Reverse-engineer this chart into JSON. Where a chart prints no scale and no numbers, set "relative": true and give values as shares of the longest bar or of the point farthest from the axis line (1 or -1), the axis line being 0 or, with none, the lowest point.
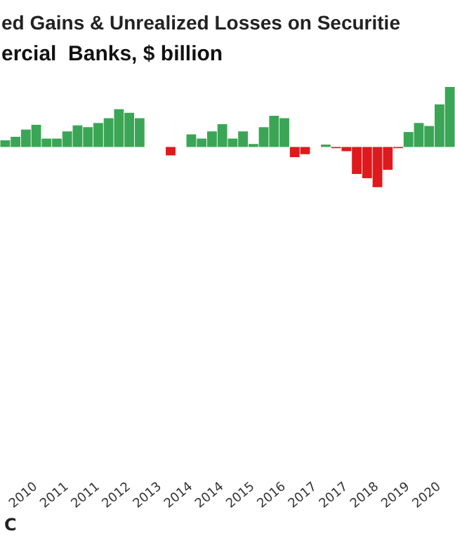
{
  "chart_data": {
    "type": "bar",
    "title": "ed Gains & Unrealized Losses on Securitie",
    "subtitle": "ercial  Banks, $ billion",
    "relative": true,
    "categories": [
      null,
      null,
      null,
      "2010",
      null,
      null,
      "2011",
      null,
      null,
      "2011",
      null,
      null,
      "2012",
      null,
      null,
      "2013",
      null,
      null,
      "2014",
      null,
      null,
      "2014",
      null,
      null,
      "2015",
      null,
      null,
      "2016",
      null,
      null,
      "2017",
      null,
      null,
      "2017",
      null,
      null,
      "2018",
      null,
      null,
      "2019",
      null,
      null,
      "2020",
      null
    ],
    "values": [
      0.11,
      0.17,
      0.29,
      0.37,
      0.14,
      0.14,
      0.26,
      0.36,
      0.33,
      0.4,
      0.48,
      0.63,
      0.57,
      0.48,
      0,
      0,
      -0.14,
      0,
      0.21,
      0.14,
      0.26,
      0.38,
      0.14,
      0.26,
      0.05,
      0.33,
      0.52,
      0.48,
      -0.17,
      -0.12,
      0,
      0.04,
      -0.02,
      -0.07,
      -0.45,
      -0.52,
      -0.67,
      -0.38,
      -0.02,
      0.25,
      0.4,
      0.35,
      0.71,
      1
    ],
    "colors": [
      "#3aa655",
      "#3aa655",
      "#3aa655",
      "#3aa655",
      "#3aa655",
      "#3aa655",
      "#3aa655",
      "#3aa655",
      "#3aa655",
      "#3aa655",
      "#3aa655",
      "#3aa655",
      "#3aa655",
      "#3aa655",
      "#3aa655",
      "#3aa655",
      "#e0191c",
      "#3aa655",
      "#3aa655",
      "#3aa655",
      "#3aa655",
      "#3aa655",
      "#3aa655",
      "#3aa655",
      "#3aa655",
      "#3aa655",
      "#3aa655",
      "#3aa655",
      "#e0191c",
      "#e0191c",
      "#3aa655",
      "#3aa655",
      "#e0191c",
      "#e0191c",
      "#e0191c",
      "#e0191c",
      "#e0191c",
      "#e0191c",
      "#e0191c",
      "#3aa655",
      "#3aa655",
      "#3aa655",
      "#3aa655",
      "#3aa655"
    ],
    "annotations": [
      "C"
    ]
  }
}
